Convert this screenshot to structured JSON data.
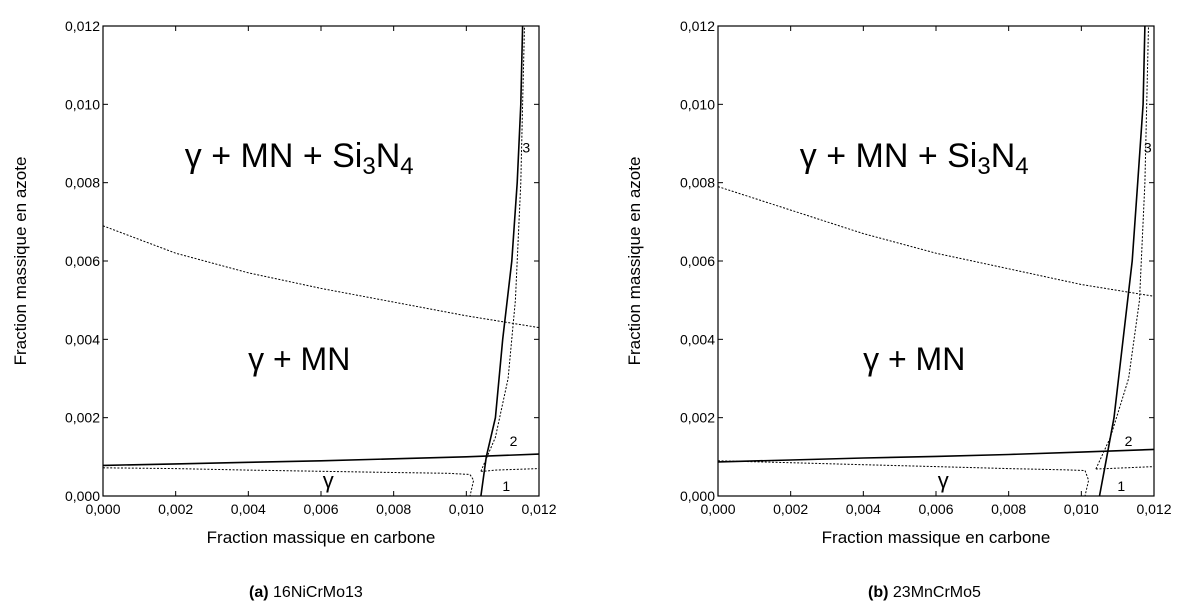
{
  "chart_data": [
    {
      "type": "line",
      "panel": "(a)",
      "caption_label": "(a)",
      "caption_text": "16NiCrMo13",
      "xlabel": "Fraction massique en carbone",
      "ylabel": "Fraction massique en azote",
      "xlim": [
        0,
        0.012
      ],
      "ylim": [
        0,
        0.012
      ],
      "x_ticks": [
        "0,000",
        "0,002",
        "0,004",
        "0,006",
        "0,008",
        "0,010",
        "0,012"
      ],
      "y_ticks": [
        "0,000",
        "0,002",
        "0,004",
        "0,006",
        "0,008",
        "0,010",
        "0,012"
      ],
      "regions": [
        {
          "label": "γ + MN + Si₃N₄",
          "x": 0.0054,
          "y": 0.0087
        },
        {
          "label": "γ + MN",
          "x": 0.0054,
          "y": 0.0035
        },
        {
          "label": "γ",
          "x": 0.0062,
          "y": 0.0004
        }
      ],
      "curve_numbers": [
        {
          "label": "1",
          "x": 0.0111,
          "y": 0.00025
        },
        {
          "label": "2",
          "x": 0.0113,
          "y": 0.0014
        },
        {
          "label": "3",
          "x": 0.01165,
          "y": 0.0089
        }
      ],
      "series": [
        {
          "style": "solid",
          "points": [
            [
              0,
              0.00078
            ],
            [
              0.002,
              0.00082
            ],
            [
              0.004,
              0.00086
            ],
            [
              0.006,
              0.0009
            ],
            [
              0.008,
              0.00095
            ],
            [
              0.01,
              0.001
            ],
            [
              0.012,
              0.00107
            ]
          ]
        },
        {
          "style": "solid",
          "points": [
            [
              0.0104,
              0
            ],
            [
              0.01055,
              0.001
            ],
            [
              0.0108,
              0.002
            ],
            [
              0.011,
              0.004
            ],
            [
              0.01125,
              0.006
            ],
            [
              0.0114,
              0.008
            ],
            [
              0.0115,
              0.01
            ],
            [
              0.01155,
              0.012
            ]
          ]
        },
        {
          "style": "dotted",
          "points": [
            [
              0,
              0.00072
            ],
            [
              0.002,
              0.0007
            ],
            [
              0.004,
              0.00066
            ],
            [
              0.006,
              0.00063
            ],
            [
              0.008,
              0.0006
            ],
            [
              0.0095,
              0.00058
            ],
            [
              0.0101,
              0.00055
            ],
            [
              0.0102,
              0.0004
            ],
            [
              0.0101,
              0
            ]
          ]
        },
        {
          "style": "dotted",
          "points": [
            [
              0.0104,
              0.00063
            ],
            [
              0.0106,
              0.00064
            ],
            [
              0.0108,
              0.00066
            ],
            [
              0.012,
              0.0007
            ]
          ]
        },
        {
          "style": "dotted",
          "points": [
            [
              0.0104,
              0.00063
            ],
            [
              0.0108,
              0.0015
            ],
            [
              0.01115,
              0.003
            ],
            [
              0.01135,
              0.005
            ],
            [
              0.0115,
              0.008
            ],
            [
              0.01155,
              0.01
            ],
            [
              0.0116,
              0.012
            ]
          ]
        },
        {
          "style": "dotted",
          "points": [
            [
              0,
              0.0069
            ],
            [
              0.002,
              0.0062
            ],
            [
              0.004,
              0.0057
            ],
            [
              0.006,
              0.0053
            ],
            [
              0.008,
              0.00495
            ],
            [
              0.01,
              0.0046
            ],
            [
              0.012,
              0.0043
            ]
          ]
        }
      ]
    },
    {
      "type": "line",
      "panel": "(b)",
      "caption_label": "(b)",
      "caption_text": "23MnCrMo5",
      "xlabel": "Fraction massique en carbone",
      "ylabel": "Fraction massique en azote",
      "xlim": [
        0,
        0.012
      ],
      "ylim": [
        0,
        0.012
      ],
      "x_ticks": [
        "0,000",
        "0,002",
        "0,004",
        "0,006",
        "0,008",
        "0,010",
        "0,012"
      ],
      "y_ticks": [
        "0,000",
        "0,002",
        "0,004",
        "0,006",
        "0,008",
        "0,010",
        "0,012"
      ],
      "regions": [
        {
          "label": "γ + MN + Si₃N₄",
          "x": 0.0054,
          "y": 0.0087
        },
        {
          "label": "γ + MN",
          "x": 0.0054,
          "y": 0.0035
        },
        {
          "label": "γ",
          "x": 0.0062,
          "y": 0.0004
        }
      ],
      "curve_numbers": [
        {
          "label": "1",
          "x": 0.0111,
          "y": 0.00025
        },
        {
          "label": "2",
          "x": 0.0113,
          "y": 0.0014
        },
        {
          "label": "3",
          "x": 0.01183,
          "y": 0.0089
        }
      ],
      "series": [
        {
          "style": "solid",
          "points": [
            [
              0,
              0.00087
            ],
            [
              0.002,
              0.00092
            ],
            [
              0.004,
              0.00097
            ],
            [
              0.006,
              0.00101
            ],
            [
              0.008,
              0.00106
            ],
            [
              0.01,
              0.00112
            ],
            [
              0.012,
              0.00119
            ]
          ]
        },
        {
          "style": "solid",
          "points": [
            [
              0.0105,
              0
            ],
            [
              0.0107,
              0.001
            ],
            [
              0.0109,
              0.002
            ],
            [
              0.01115,
              0.004
            ],
            [
              0.0114,
              0.006
            ],
            [
              0.01155,
              0.008
            ],
            [
              0.0117,
              0.01
            ],
            [
              0.01175,
              0.012
            ]
          ]
        },
        {
          "style": "dotted",
          "points": [
            [
              0,
              0.0009
            ],
            [
              0.002,
              0.00085
            ],
            [
              0.004,
              0.0008
            ],
            [
              0.006,
              0.00075
            ],
            [
              0.008,
              0.0007
            ],
            [
              0.0095,
              0.00067
            ],
            [
              0.0101,
              0.00065
            ],
            [
              0.0102,
              0.0004
            ],
            [
              0.0101,
              0
            ]
          ]
        },
        {
          "style": "dotted",
          "points": [
            [
              0.0104,
              0.00069
            ],
            [
              0.0107,
              0.0007
            ],
            [
              0.012,
              0.00075
            ]
          ]
        },
        {
          "style": "dotted",
          "points": [
            [
              0.0104,
              0.00069
            ],
            [
              0.0108,
              0.0015
            ],
            [
              0.0113,
              0.003
            ],
            [
              0.0116,
              0.005
            ],
            [
              0.01175,
              0.008
            ],
            [
              0.0118,
              0.01
            ],
            [
              0.01185,
              0.012
            ]
          ]
        },
        {
          "style": "dotted",
          "points": [
            [
              0,
              0.0079
            ],
            [
              0.002,
              0.0073
            ],
            [
              0.004,
              0.0067
            ],
            [
              0.006,
              0.0062
            ],
            [
              0.008,
              0.0058
            ],
            [
              0.01,
              0.0054
            ],
            [
              0.012,
              0.0051
            ]
          ]
        }
      ]
    }
  ]
}
